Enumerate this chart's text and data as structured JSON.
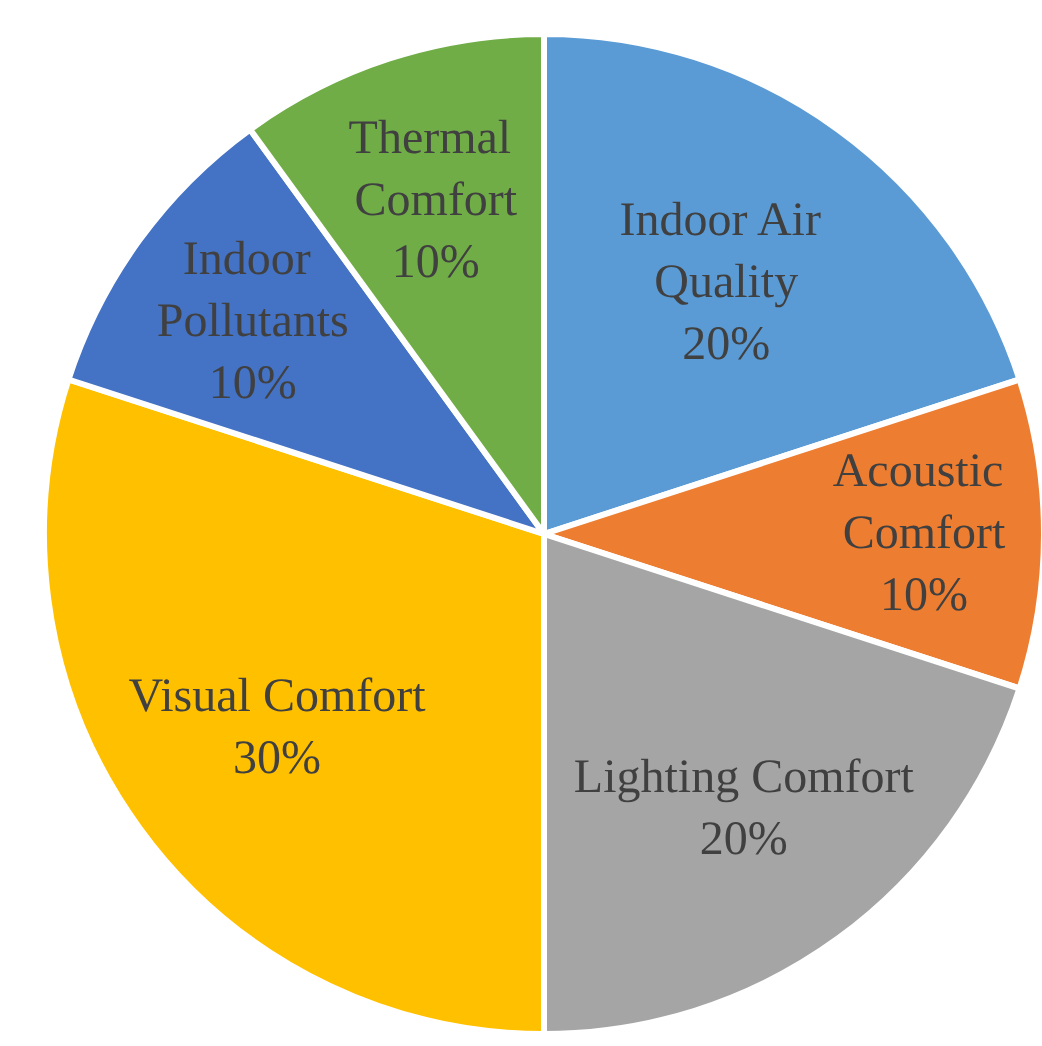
{
  "chart_data": {
    "type": "pie",
    "categories": [
      "Indoor Air Quality",
      "Acoustic Comfort",
      "Lighting Comfort",
      "Visual Comfort",
      "Indoor Pollutants",
      "Thermal Comfort"
    ],
    "values": [
      20,
      10,
      20,
      30,
      10,
      10
    ],
    "colors": [
      "#5b9bd5",
      "#ed7d31",
      "#a5a5a5",
      "#ffc000",
      "#4472c4",
      "#70ad47"
    ],
    "value_labels": [
      "20%",
      "10%",
      "20%",
      "30%",
      "10%",
      "10%"
    ]
  }
}
